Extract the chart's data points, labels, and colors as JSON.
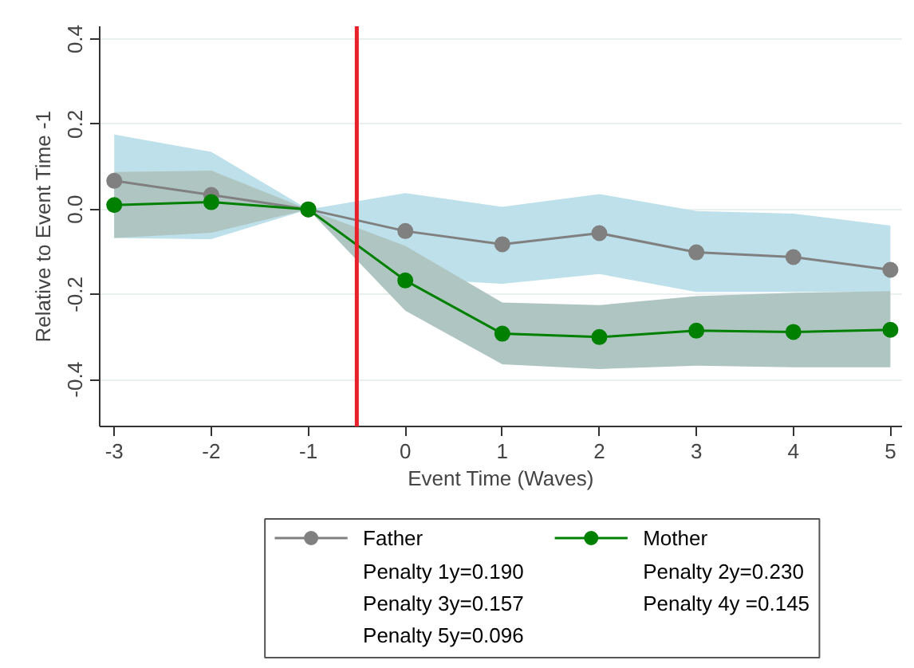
{
  "chart_data": {
    "type": "line",
    "xlabel": "Event Time (Waves)",
    "ylabel": "Relative to Event Time -1",
    "x": [
      -3,
      -2,
      -1,
      0,
      1,
      2,
      3,
      4,
      5
    ],
    "series": [
      {
        "name": "Father",
        "color": "#808080",
        "values": [
          0.067,
          0.034,
          0,
          -0.051,
          -0.082,
          -0.056,
          -0.101,
          -0.112,
          -0.142
        ],
        "lower": [
          -0.067,
          -0.07,
          0,
          -0.162,
          -0.175,
          -0.152,
          -0.194,
          -0.194,
          -0.194
        ],
        "upper": [
          0.176,
          0.135,
          0,
          0.038,
          0.006,
          0.036,
          -0.004,
          -0.01,
          -0.038
        ]
      },
      {
        "name": "Mother",
        "color": "#008000",
        "values": [
          0.01,
          0.017,
          0,
          -0.167,
          -0.292,
          -0.3,
          -0.285,
          -0.288,
          -0.283
        ],
        "lower": [
          -0.067,
          -0.055,
          0,
          -0.238,
          -0.364,
          -0.375,
          -0.367,
          -0.371,
          -0.371
        ],
        "upper": [
          0.088,
          0.091,
          0,
          -0.086,
          -0.219,
          -0.225,
          -0.204,
          -0.196,
          -0.192
        ]
      }
    ],
    "xlim": [
      -3.15,
      5.12
    ],
    "ylim": [
      -0.51,
      0.43
    ],
    "xticks": [
      -3,
      -2,
      -1,
      0,
      1,
      2,
      3,
      4,
      5
    ],
    "yticks": [
      0.4,
      0.2,
      {
        "value": 0,
        "label": "0.0"
      },
      -0.2,
      -0.4
    ],
    "ref_lines": [
      {
        "axis": "x",
        "value": -0.5,
        "label": null,
        "color": "#e8202a"
      }
    ],
    "annotations": [
      "Penalty 1y=0.190",
      "Penalty 2y=0.230",
      "Penalty 3y=0.157",
      "Penalty 4y =0.145",
      "Penalty 5y=0.096"
    ],
    "grid": "y",
    "legend": "bottom",
    "marker": "circle",
    "line_style": "solid"
  }
}
